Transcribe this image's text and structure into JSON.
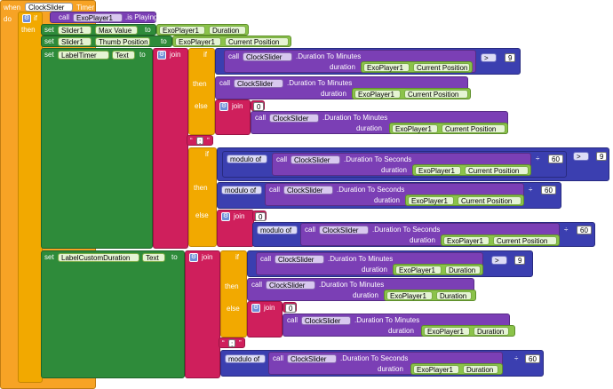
{
  "event": {
    "when": "when",
    "component": "ClockSlider",
    "event_name": "Timer",
    "do": "do"
  },
  "if_block": {
    "if": "if",
    "then": "then"
  },
  "cond": {
    "call": "call",
    "component": "ExoPlayer1",
    "method": ".is Playing"
  },
  "set1": {
    "set": "set",
    "component": "Slider1",
    "prop": "Max Value",
    "to": "to",
    "value_component": "ExoPlayer1",
    "value_prop": "Duration"
  },
  "set2": {
    "set": "set",
    "component": "Slider1",
    "prop": "Thumb Position",
    "to": "to",
    "value_component": "ExoPlayer1",
    "value_prop": "Current Position"
  },
  "set3": {
    "set": "set",
    "component": "LabelTimer",
    "prop": "Text",
    "to": "to"
  },
  "set4": {
    "set": "set",
    "component": "LabelCustomDuration",
    "prop": "Text",
    "to": "to"
  },
  "words": {
    "join": "join",
    "if": "if",
    "then": "then",
    "else": "else",
    "call": "call",
    "duration": "duration",
    "modulo_of": "modulo of",
    "gt": ">",
    "div": "÷",
    "colon": ":"
  },
  "clock": "ClockSlider",
  "exo": "ExoPlayer1",
  "method_min": ".Duration To Minutes",
  "method_sec": ".Duration To Seconds",
  "prop_cur": "Current Position",
  "prop_dur": "Duration",
  "nums": {
    "nine": "9",
    "zero": "0",
    "sixty": "60"
  }
}
